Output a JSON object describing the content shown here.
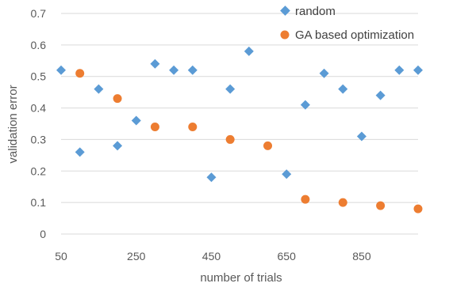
{
  "chart_data": {
    "type": "scatter",
    "title": "",
    "xlabel": "number of trials",
    "ylabel": "validation error",
    "xlim": [
      50,
      1000
    ],
    "ylim": [
      0,
      0.7
    ],
    "xticks": [
      50,
      250,
      450,
      650,
      850
    ],
    "yticks": [
      0,
      0.1,
      0.2,
      0.3,
      0.4,
      0.5,
      0.6,
      0.7
    ],
    "grid": "horizontal",
    "legend": "top-right",
    "series": [
      {
        "name": "random",
        "marker": "diamond",
        "color": "#5b9bd5",
        "points": [
          [
            50,
            0.52
          ],
          [
            100,
            0.26
          ],
          [
            150,
            0.46
          ],
          [
            200,
            0.28
          ],
          [
            250,
            0.36
          ],
          [
            300,
            0.54
          ],
          [
            350,
            0.52
          ],
          [
            400,
            0.52
          ],
          [
            450,
            0.18
          ],
          [
            500,
            0.46
          ],
          [
            550,
            0.58
          ],
          [
            650,
            0.19
          ],
          [
            700,
            0.41
          ],
          [
            750,
            0.51
          ],
          [
            800,
            0.46
          ],
          [
            850,
            0.31
          ],
          [
            900,
            0.44
          ],
          [
            950,
            0.52
          ],
          [
            1000,
            0.52
          ]
        ]
      },
      {
        "name": "GA based optimization",
        "marker": "circle",
        "color": "#ed7d31",
        "points": [
          [
            100,
            0.51
          ],
          [
            200,
            0.43
          ],
          [
            300,
            0.34
          ],
          [
            400,
            0.34
          ],
          [
            500,
            0.3
          ],
          [
            600,
            0.28
          ],
          [
            700,
            0.11
          ],
          [
            800,
            0.1
          ],
          [
            900,
            0.09
          ],
          [
            1000,
            0.08
          ]
        ]
      }
    ]
  }
}
